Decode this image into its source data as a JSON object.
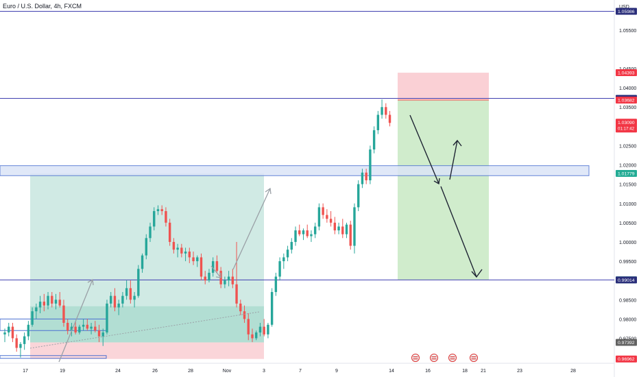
{
  "header": {
    "title": "Euro / U.S. Dollar, 4h, FXCM",
    "currency": "USD"
  },
  "colors": {
    "bull": "#26a69a",
    "bear": "#ef5350",
    "hline": "#3f3fb0",
    "tag_blue": "#2a2e7a",
    "tag_red": "#f23645",
    "tag_green": "#22ab94",
    "tag_grey": "#616161",
    "zone_green": "#b7dfd5",
    "zone_red": "#f9cbd0",
    "zone_blue": "#dbe4f7"
  },
  "chart_data": {
    "type": "candlestick",
    "symbol": "EURUSD",
    "timeframe": "4h",
    "ylim": [
      0.9685,
      1.0628
    ],
    "y_ticks": [
      0.975,
      0.98,
      0.985,
      0.995,
      1.0,
      1.005,
      1.01,
      1.015,
      1.02,
      1.025,
      1.035,
      1.04,
      1.045,
      1.055
    ],
    "y_tick_labels": [
      "0.97500",
      "0.98000",
      "0.98500",
      "0.99500",
      "1.00000",
      "1.00500",
      "1.01000",
      "1.01500",
      "1.02000",
      "1.02500",
      "1.03500",
      "1.04000",
      "1.04500",
      "1.05500"
    ],
    "x_ticks": [
      "17",
      "19",
      "24",
      "26",
      "28",
      "Nov",
      "3",
      "7",
      "9",
      "14",
      "16",
      "18",
      "21",
      "23",
      "28"
    ],
    "price_tags": [
      {
        "label": "1.05986",
        "value": 1.05986,
        "color": "#2a2e7a"
      },
      {
        "label": "1.04393",
        "value": 1.04393,
        "color": "#f23645"
      },
      {
        "label": "1.03727",
        "value": 1.03727,
        "color": "#2a2e7a"
      },
      {
        "label": "1.03682",
        "value": 1.03682,
        "color": "#f23645"
      },
      {
        "label": "1.03090",
        "sub": "01:17:42",
        "value": 1.0309,
        "color": "#f23645"
      },
      {
        "label": "1.01779",
        "value": 1.01779,
        "color": "#22ab94"
      },
      {
        "label": "0.99017",
        "value": 0.99017,
        "color": "#22ab94"
      },
      {
        "label": "0.99014",
        "value": 0.99014,
        "color": "#2a2e7a"
      },
      {
        "label": "0.97392",
        "value": 0.97392,
        "color": "#616161"
      },
      {
        "label": "0.96962",
        "value": 0.96962,
        "color": "#f23645"
      }
    ],
    "horizontal_lines": [
      1.05986,
      1.03727,
      0.99014
    ],
    "blue_zone": [
      1.0172,
      1.0198
    ],
    "long_position": {
      "entry": 0.97392,
      "target": 1.01779,
      "stop": 0.96962
    },
    "short_position": {
      "entry": 1.03682,
      "target": 0.99017,
      "stop": 1.04393
    },
    "candles": [
      [
        0.976,
        0.9775,
        0.974,
        0.9765
      ],
      [
        0.9765,
        0.979,
        0.9755,
        0.978
      ],
      [
        0.978,
        0.979,
        0.974,
        0.975
      ],
      [
        0.975,
        0.976,
        0.9715,
        0.9725
      ],
      [
        0.9725,
        0.974,
        0.97,
        0.9735
      ],
      [
        0.9735,
        0.9765,
        0.972,
        0.9755
      ],
      [
        0.9755,
        0.9795,
        0.9745,
        0.9785
      ],
      [
        0.9785,
        0.983,
        0.978,
        0.982
      ],
      [
        0.982,
        0.984,
        0.98,
        0.983
      ],
      [
        0.983,
        0.986,
        0.9815,
        0.9845
      ],
      [
        0.9845,
        0.9865,
        0.982,
        0.9835
      ],
      [
        0.9835,
        0.987,
        0.9825,
        0.986
      ],
      [
        0.986,
        0.987,
        0.983,
        0.984
      ],
      [
        0.984,
        0.9865,
        0.9825,
        0.985
      ],
      [
        0.985,
        0.987,
        0.983,
        0.9835
      ],
      [
        0.9835,
        0.985,
        0.978,
        0.979
      ],
      [
        0.979,
        0.98,
        0.976,
        0.977
      ],
      [
        0.977,
        0.979,
        0.9755,
        0.978
      ],
      [
        0.978,
        0.9795,
        0.976,
        0.9765
      ],
      [
        0.9765,
        0.9785,
        0.976,
        0.978
      ],
      [
        0.978,
        0.98,
        0.977,
        0.9785
      ],
      [
        0.9785,
        0.98,
        0.977,
        0.9775
      ],
      [
        0.9775,
        0.979,
        0.976,
        0.978
      ],
      [
        0.978,
        0.9795,
        0.9765,
        0.977
      ],
      [
        0.977,
        0.9785,
        0.974,
        0.9755
      ],
      [
        0.9755,
        0.9775,
        0.973,
        0.9765
      ],
      [
        0.9765,
        0.985,
        0.976,
        0.984
      ],
      [
        0.984,
        0.987,
        0.983,
        0.986
      ],
      [
        0.986,
        0.988,
        0.982,
        0.983
      ],
      [
        0.983,
        0.985,
        0.981,
        0.984
      ],
      [
        0.984,
        0.987,
        0.983,
        0.986
      ],
      [
        0.986,
        0.99,
        0.985,
        0.988
      ],
      [
        0.988,
        0.99,
        0.984,
        0.985
      ],
      [
        0.985,
        0.987,
        0.983,
        0.986
      ],
      [
        0.986,
        0.994,
        0.9855,
        0.993
      ],
      [
        0.993,
        0.997,
        0.992,
        0.9965
      ],
      [
        0.9965,
        1.002,
        0.9955,
        1.001
      ],
      [
        1.001,
        1.005,
        1.0,
        1.004
      ],
      [
        1.004,
        1.009,
        1.003,
        1.008
      ],
      [
        1.008,
        1.0095,
        1.007,
        1.0085
      ],
      [
        1.0085,
        1.0095,
        1.007,
        1.008
      ],
      [
        1.008,
        1.009,
        1.004,
        1.005
      ],
      [
        1.005,
        1.006,
        0.999,
        1.0
      ],
      [
        1.0,
        1.001,
        0.997,
        0.998
      ],
      [
        0.998,
        0.9995,
        0.996,
        0.9985
      ],
      [
        0.9985,
        0.9995,
        0.996,
        0.997
      ],
      [
        0.997,
        0.9985,
        0.995,
        0.9975
      ],
      [
        0.9975,
        0.9985,
        0.9945,
        0.996
      ],
      [
        0.996,
        0.9975,
        0.994,
        0.995
      ],
      [
        0.995,
        0.9965,
        0.9935,
        0.996
      ],
      [
        0.996,
        0.997,
        0.99,
        0.991
      ],
      [
        0.991,
        0.9925,
        0.989,
        0.99
      ],
      [
        0.99,
        0.993,
        0.9895,
        0.992
      ],
      [
        0.992,
        0.996,
        0.991,
        0.995
      ],
      [
        0.995,
        0.9965,
        0.992,
        0.9925
      ],
      [
        0.9925,
        0.9935,
        0.988,
        0.989
      ],
      [
        0.989,
        0.991,
        0.988,
        0.99
      ],
      [
        0.99,
        0.9925,
        0.9885,
        0.991
      ],
      [
        0.991,
        0.993,
        0.988,
        0.989
      ],
      [
        0.989,
        1.0,
        0.983,
        0.984
      ],
      [
        0.984,
        0.985,
        0.981,
        0.982
      ],
      [
        0.982,
        0.9835,
        0.979,
        0.98
      ],
      [
        0.98,
        0.9815,
        0.9745,
        0.976
      ],
      [
        0.976,
        0.9775,
        0.974,
        0.975
      ],
      [
        0.975,
        0.977,
        0.9745,
        0.9765
      ],
      [
        0.9765,
        0.979,
        0.9755,
        0.978
      ],
      [
        0.978,
        0.98,
        0.9755,
        0.976
      ],
      [
        0.976,
        0.979,
        0.975,
        0.9785
      ],
      [
        0.9785,
        0.988,
        0.978,
        0.987
      ],
      [
        0.987,
        0.992,
        0.986,
        0.991
      ],
      [
        0.991,
        0.996,
        0.99,
        0.995
      ],
      [
        0.995,
        0.997,
        0.993,
        0.996
      ],
      [
        0.996,
        0.999,
        0.995,
        0.998
      ],
      [
        0.998,
        1.001,
        0.997,
        1.0
      ],
      [
        1.0,
        1.004,
        0.999,
        1.003
      ],
      [
        1.003,
        1.0045,
        1.0015,
        1.002
      ],
      [
        1.002,
        1.0035,
        1.0005,
        1.003
      ],
      [
        1.003,
        1.0045,
        1.001,
        1.0015
      ],
      [
        1.0015,
        1.003,
        1.0,
        1.002
      ],
      [
        1.002,
        1.005,
        1.001,
        1.004
      ],
      [
        1.004,
        1.01,
        1.003,
        1.009
      ],
      [
        1.009,
        1.01,
        1.006,
        1.007
      ],
      [
        1.007,
        1.0085,
        1.005,
        1.006
      ],
      [
        1.006,
        1.008,
        1.004,
        1.005
      ],
      [
        1.005,
        1.0065,
        1.002,
        1.003
      ],
      [
        1.003,
        1.005,
        1.002,
        1.004
      ],
      [
        1.004,
        1.006,
        1.001,
        1.002
      ],
      [
        1.002,
        1.005,
        1.001,
        1.0045
      ],
      [
        1.0045,
        1.0055,
        0.998,
        0.999
      ],
      [
        0.999,
        1.01,
        0.997,
        1.009
      ],
      [
        1.009,
        1.016,
        1.008,
        1.015
      ],
      [
        1.015,
        1.019,
        1.014,
        1.018
      ],
      [
        1.018,
        1.019,
        1.015,
        1.016
      ],
      [
        1.016,
        1.025,
        1.015,
        1.024
      ],
      [
        1.024,
        1.03,
        1.023,
        1.029
      ],
      [
        1.029,
        1.034,
        1.028,
        1.033
      ],
      [
        1.033,
        1.037,
        1.032,
        1.035
      ],
      [
        1.035,
        1.036,
        1.032,
        1.033
      ],
      [
        1.033,
        1.034,
        1.03,
        1.0309
      ]
    ],
    "events": [
      "US",
      "US",
      "US",
      "US"
    ]
  }
}
